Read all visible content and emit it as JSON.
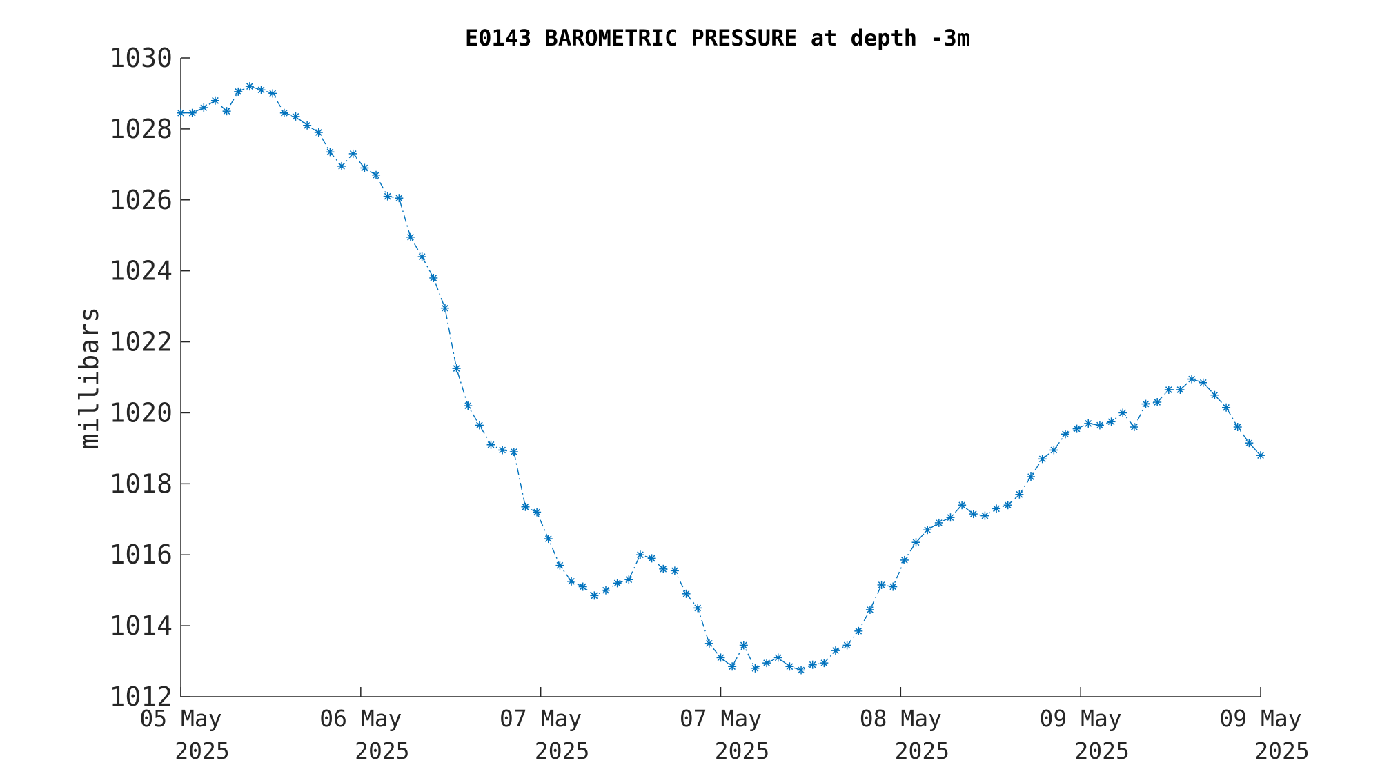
{
  "chart_data": {
    "type": "line",
    "title": "E0143 BAROMETRIC PRESSURE at depth -3m",
    "xlabel": "",
    "ylabel": "millibars",
    "ylim": [
      1012,
      1030
    ],
    "yticks": [
      1012,
      1014,
      1016,
      1018,
      1020,
      1022,
      1024,
      1026,
      1028,
      1030
    ],
    "xticks": [
      {
        "day": "05 May",
        "year": "2025"
      },
      {
        "day": "06 May",
        "year": "2025"
      },
      {
        "day": "07 May",
        "year": "2025"
      },
      {
        "day": "07 May",
        "year": "2025"
      },
      {
        "day": "08 May",
        "year": "2025"
      },
      {
        "day": "09 May",
        "year": "2025"
      },
      {
        "day": "09 May",
        "year": "2025"
      }
    ],
    "grid": false,
    "marker": "asterisk",
    "line_style": "dash-dot",
    "color": "#0072BD",
    "series": [
      {
        "values": [
          1028.45,
          1028.45,
          1028.6,
          1028.8,
          1028.5,
          1029.05,
          1029.2,
          1029.1,
          1029.0,
          1028.45,
          1028.35,
          1028.1,
          1027.9,
          1027.35,
          1026.95,
          1027.3,
          1026.9,
          1026.7,
          1026.1,
          1026.05,
          1024.95,
          1024.4,
          1023.8,
          1022.95,
          1021.25,
          1020.2,
          1019.65,
          1019.1,
          1018.95,
          1018.9,
          1017.35,
          1017.2,
          1016.45,
          1015.7,
          1015.25,
          1015.1,
          1014.85,
          1015.0,
          1015.2,
          1015.3,
          1016.0,
          1015.9,
          1015.6,
          1015.55,
          1014.9,
          1014.5,
          1013.5,
          1013.1,
          1012.85,
          1013.45,
          1012.8,
          1012.95,
          1013.1,
          1012.85,
          1012.75,
          1012.9,
          1012.95,
          1013.3,
          1013.45,
          1013.85,
          1014.45,
          1015.15,
          1015.1,
          1015.85,
          1016.35,
          1016.7,
          1016.9,
          1017.05,
          1017.4,
          1017.15,
          1017.1,
          1017.3,
          1017.4,
          1017.7,
          1018.2,
          1018.7,
          1018.95,
          1019.4,
          1019.55,
          1019.7,
          1019.65,
          1019.75,
          1020.0,
          1019.6,
          1020.25,
          1020.3,
          1020.65,
          1020.65,
          1020.95,
          1020.85,
          1020.5,
          1020.15,
          1019.6,
          1019.15,
          1018.8
        ]
      }
    ]
  }
}
